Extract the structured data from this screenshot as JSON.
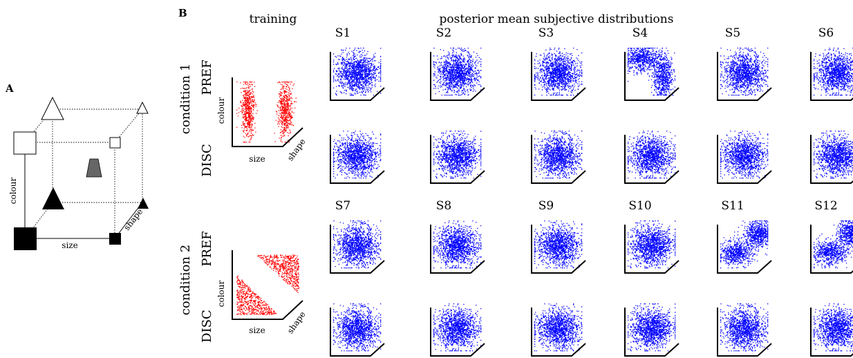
{
  "panelA": {
    "label": "A",
    "axis_colour": "colour",
    "axis_size": "size",
    "axis_shape": "shape"
  },
  "panelB": {
    "label": "B",
    "training_title": "training",
    "posterior_title": "posterior mean subjective distributions",
    "conditions": [
      {
        "label": "condition 1",
        "rows": [
          "PREF",
          "DISC"
        ],
        "training_axes": {
          "colour": "colour",
          "size": "size",
          "shape": "shape"
        },
        "subjects": [
          "S1",
          "S2",
          "S3",
          "S4",
          "S5",
          "S6"
        ]
      },
      {
        "label": "condition 2",
        "rows": [
          "PREF",
          "DISC"
        ],
        "training_axes": {
          "colour": "colour",
          "size": "size",
          "shape": "shape"
        },
        "subjects": [
          "S7",
          "S8",
          "S9",
          "S10",
          "S11",
          "S12"
        ]
      }
    ]
  },
  "colors": {
    "training_points": "#ff0000",
    "posterior_points": "#0000ff",
    "dark_shape": "#000000",
    "grey_shape": "#666666"
  }
}
